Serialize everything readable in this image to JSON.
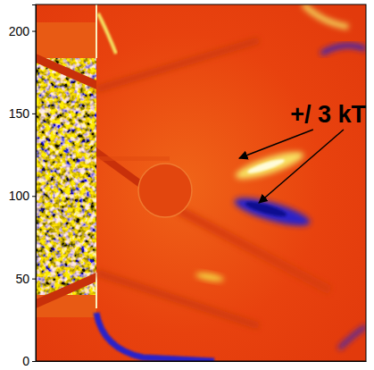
{
  "chart_data": {
    "type": "image",
    "xlim": [
      0,
      200
    ],
    "ylim": [
      0,
      216
    ],
    "yticks": [
      0,
      50,
      100,
      150,
      200
    ],
    "tick_labels": "y",
    "annotations": [
      {
        "text": "+/ 3 kT"
      }
    ]
  }
}
